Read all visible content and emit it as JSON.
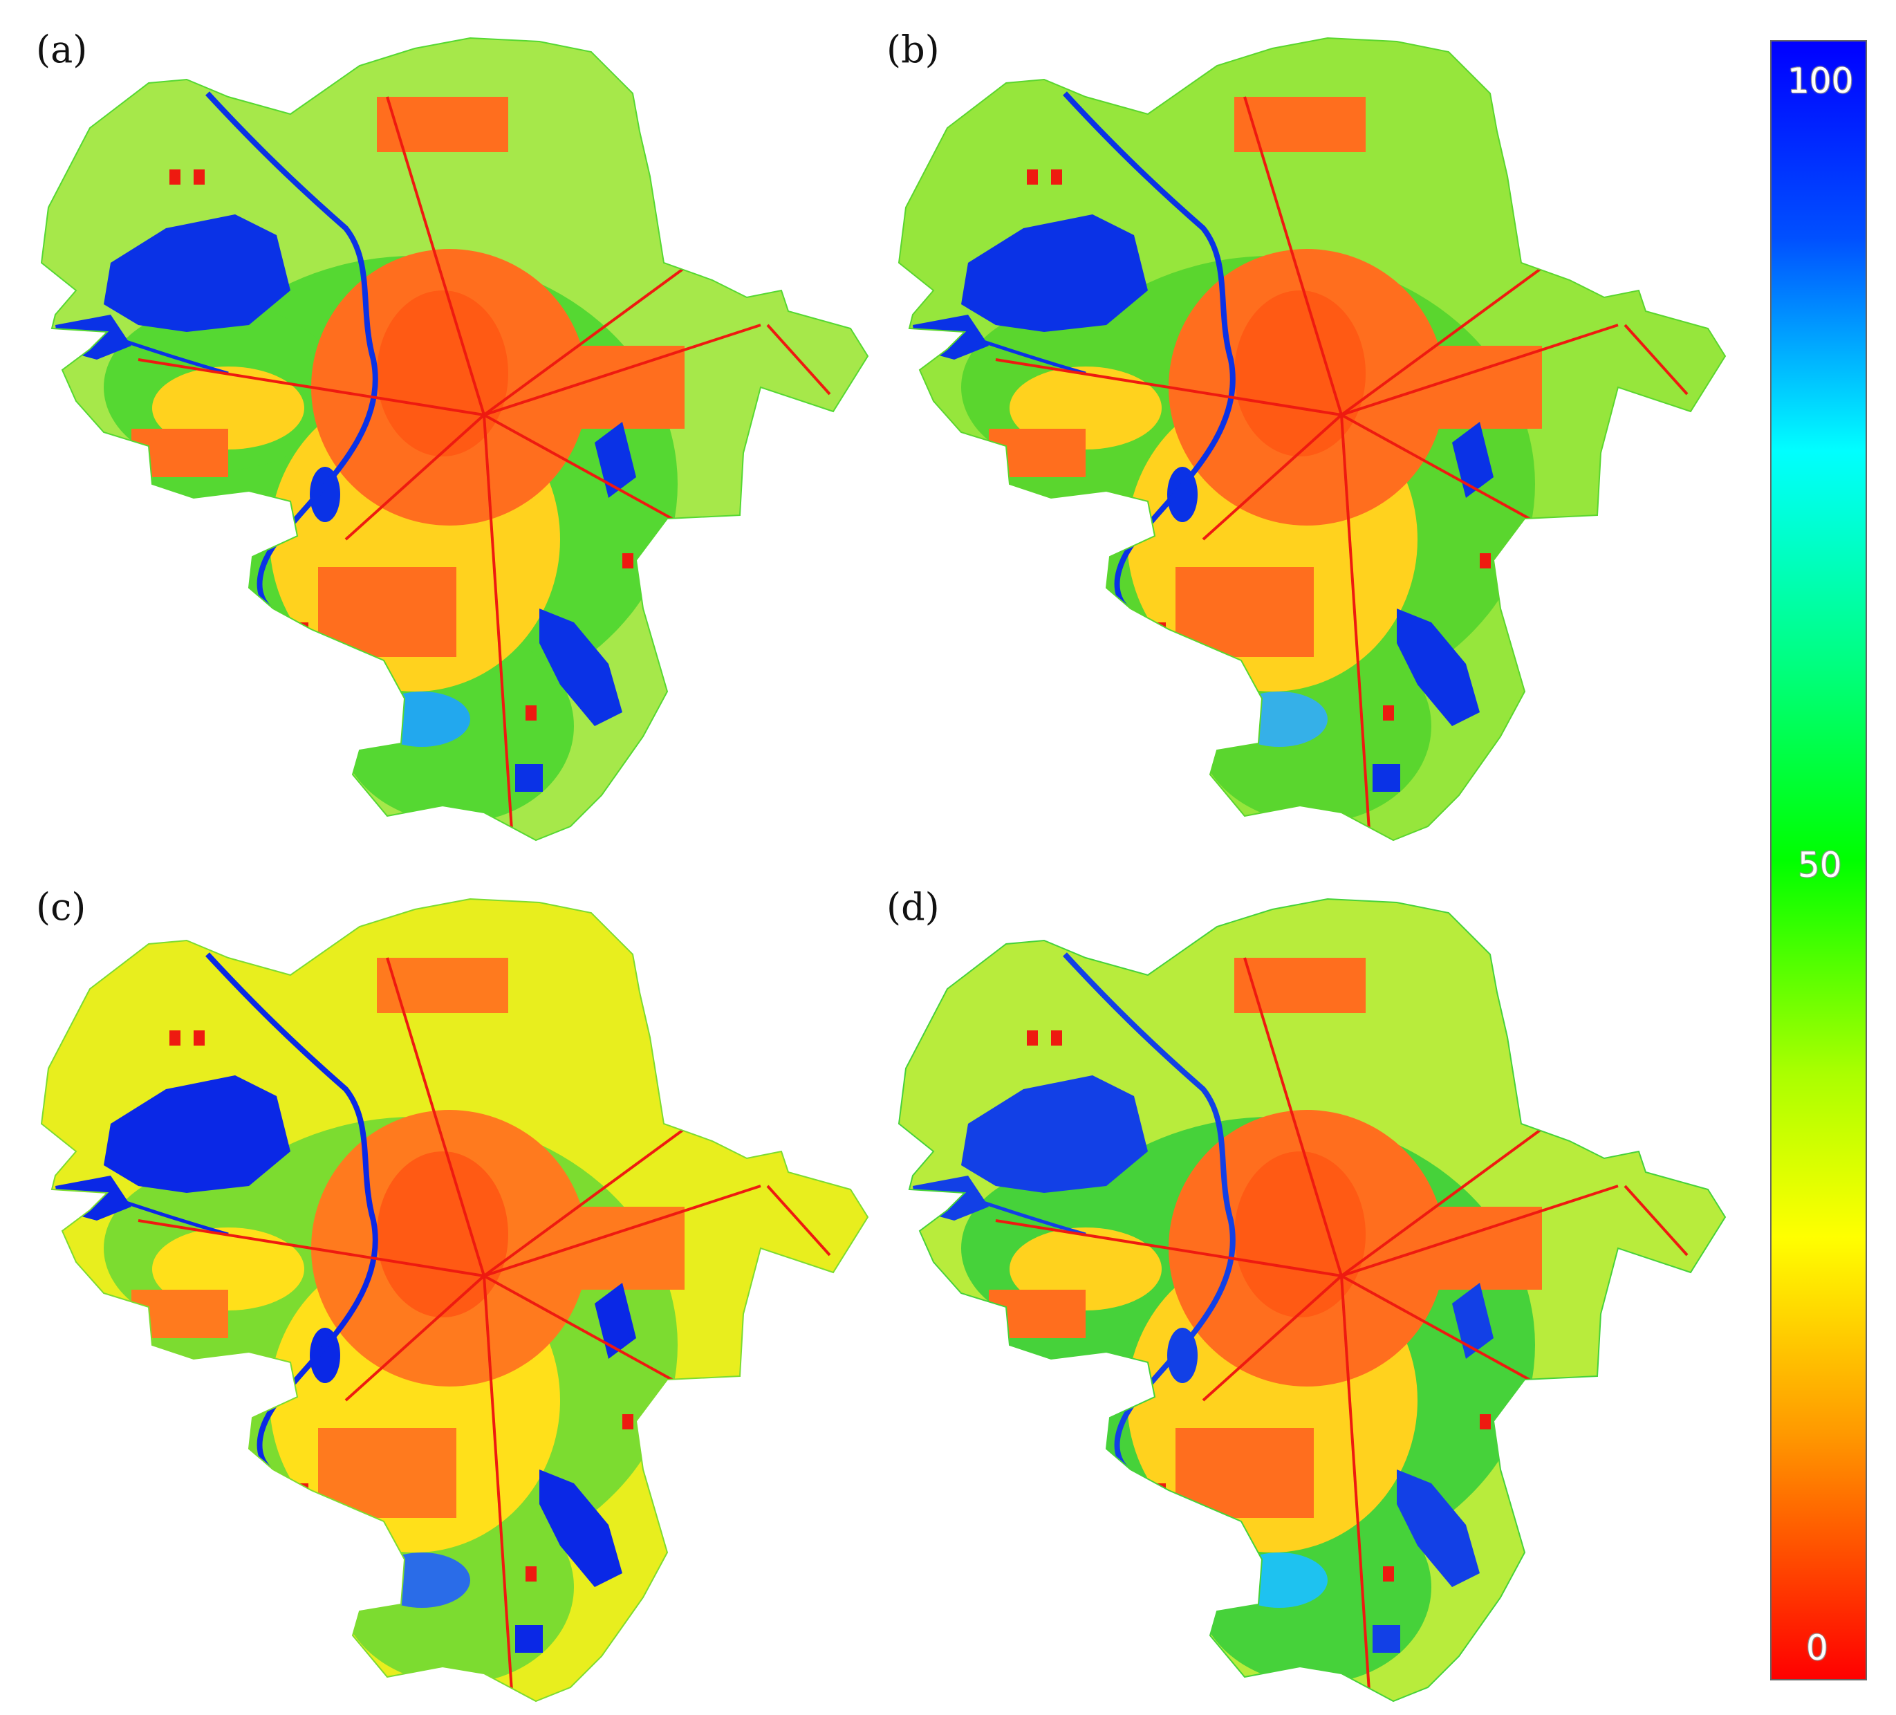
{
  "panels": [
    {
      "label": "(a)",
      "palette": {
        "outer": "#a6e84a",
        "mid": "#55d832",
        "urban": "#ff6e1e",
        "core": "#ff5a14",
        "water": "#0a32e6",
        "cyan": "#22a8ee",
        "yellow": "#ffd21e"
      }
    },
    {
      "label": "(b)",
      "palette": {
        "outer": "#96e63c",
        "mid": "#5ad62e",
        "urban": "#ff6e1e",
        "core": "#ff5a14",
        "water": "#0a32e6",
        "cyan": "#35b0e8",
        "yellow": "#ffd21e"
      }
    },
    {
      "label": "(c)",
      "palette": {
        "outer": "#e8ee1e",
        "mid": "#7cdc30",
        "urban": "#ff7a1e",
        "core": "#ff5a14",
        "water": "#0a28e6",
        "cyan": "#2a6ce8",
        "yellow": "#ffe01a"
      }
    },
    {
      "label": "(d)",
      "palette": {
        "outer": "#b8ec3c",
        "mid": "#46d23a",
        "urban": "#ff6e1e",
        "core": "#ff5a14",
        "water": "#1240e6",
        "cyan": "#1ec2f0",
        "yellow": "#ffd21e"
      }
    }
  ],
  "legend": {
    "ticks": [
      {
        "label": "100",
        "value": 100
      },
      {
        "label": "50",
        "value": 50
      },
      {
        "label": "0",
        "value": 0
      }
    ],
    "stops": [
      {
        "value": 100,
        "color": "#0000ff"
      },
      {
        "value": 88,
        "color": "#0050ff"
      },
      {
        "value": 75,
        "color": "#00ffff"
      },
      {
        "value": 62,
        "color": "#00ff80"
      },
      {
        "value": 50,
        "color": "#00ff00"
      },
      {
        "value": 37,
        "color": "#aaff00"
      },
      {
        "value": 27,
        "color": "#ffff00"
      },
      {
        "value": 15,
        "color": "#ff9900"
      },
      {
        "value": 0,
        "color": "#ff0000"
      }
    ]
  }
}
